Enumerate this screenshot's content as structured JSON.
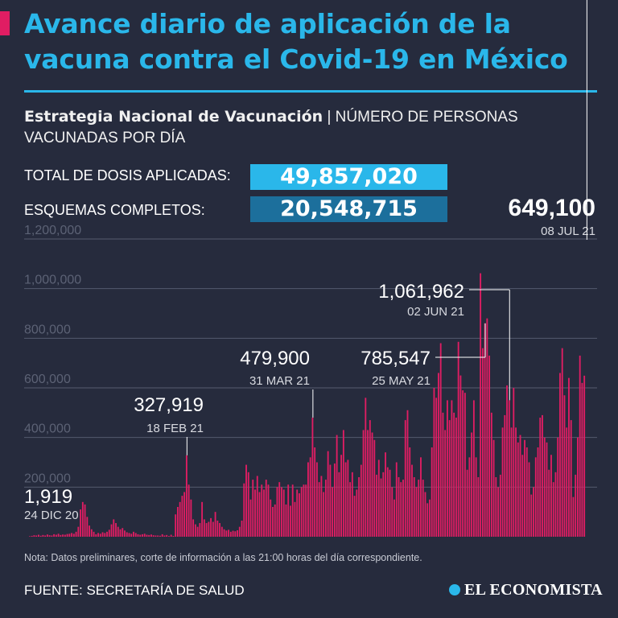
{
  "header": {
    "title": "Avance diario de aplicación de la vacuna contra el Covid-19 en México",
    "subtitle_bold": "Estrategia Nacional de Vacunación",
    "subtitle_rest": " | NÚMERO DE PERSONAS VACUNADAS POR DÍA"
  },
  "stats": {
    "total_label": "TOTAL DE DOSIS APLICADAS:",
    "total_value": "49,857,020",
    "complete_label": "ESQUEMAS COMPLETOS:",
    "complete_value": "20,548,715"
  },
  "footer": {
    "note": "Nota: Datos preliminares, corte de información a las 21:00 horas del día correspondiente.",
    "source": "FUENTE: SECRETARÍA DE SALUD",
    "brand": "EL ECONOMISTA"
  },
  "colors": {
    "bar": "#e01d63",
    "accent": "#2ab7ea",
    "background": "#262b3d",
    "grid": "#555b6e"
  },
  "chart_data": {
    "type": "bar",
    "x_start": "2020-12-24",
    "x_end": "2021-07-08",
    "ylim": [
      0,
      1200000
    ],
    "yticks": [
      {
        "value": 0,
        "label": ""
      },
      {
        "value": 200000,
        "label": "200,000"
      },
      {
        "value": 400000,
        "label": "400,000"
      },
      {
        "value": 600000,
        "label": "600,000"
      },
      {
        "value": 800000,
        "label": "800,000"
      },
      {
        "value": 1000000,
        "label": "1,000,000"
      },
      {
        "value": 1200000,
        "label": "1,200,000"
      }
    ],
    "values": [
      1919,
      3500,
      6000,
      5000,
      8000,
      4000,
      7000,
      5000,
      9000,
      6000,
      5000,
      10000,
      8000,
      12000,
      7000,
      9000,
      8000,
      11000,
      12000,
      15000,
      12000,
      20000,
      40000,
      110000,
      140000,
      130000,
      80000,
      45000,
      30000,
      20000,
      10000,
      15000,
      12000,
      18000,
      15000,
      20000,
      28000,
      50000,
      70000,
      55000,
      40000,
      30000,
      35000,
      25000,
      18000,
      15000,
      12000,
      20000,
      15000,
      10000,
      8000,
      10000,
      12000,
      8000,
      7000,
      9000,
      6000,
      5000,
      5000,
      4000,
      10000,
      5000,
      7000,
      3000,
      8000,
      3000,
      90000,
      120000,
      140000,
      165000,
      180000,
      327919,
      210000,
      150000,
      70000,
      50000,
      40000,
      55000,
      140000,
      70000,
      55000,
      60000,
      75000,
      60000,
      100000,
      65000,
      55000,
      40000,
      30000,
      25000,
      28000,
      20000,
      24000,
      22000,
      26000,
      40000,
      65000,
      215000,
      290000,
      260000,
      150000,
      230000,
      190000,
      245000,
      180000,
      210000,
      190000,
      230000,
      210000,
      150000,
      120000,
      130000,
      200000,
      220000,
      200000,
      190000,
      130000,
      210000,
      125000,
      210000,
      140000,
      190000,
      175000,
      200000,
      210000,
      210000,
      300000,
      320000,
      479900,
      360000,
      300000,
      220000,
      245000,
      180000,
      230000,
      345000,
      290000,
      200000,
      295000,
      410000,
      260000,
      330000,
      430000,
      300000,
      310000,
      220000,
      260000,
      165000,
      190000,
      240000,
      290000,
      430000,
      560000,
      430000,
      470000,
      420000,
      390000,
      250000,
      310000,
      235000,
      260000,
      340000,
      280000,
      270000,
      200000,
      150000,
      300000,
      240000,
      220000,
      230000,
      470000,
      510000,
      360000,
      290000,
      240000,
      200000,
      230000,
      320000,
      230000,
      180000,
      135000,
      150000,
      360000,
      600000,
      560000,
      660000,
      780000,
      500000,
      430000,
      550000,
      470000,
      550000,
      500000,
      480000,
      785547,
      650000,
      590000,
      580000,
      270000,
      320000,
      420000,
      550000,
      320000,
      240000,
      1061962,
      760000,
      860000,
      880000,
      730000,
      500000,
      390000,
      240000,
      200000,
      250000,
      440000,
      490000,
      610000,
      550000,
      440000,
      600000,
      440000,
      380000,
      410000,
      330000,
      390000,
      360000,
      300000,
      170000,
      200000,
      320000,
      360000,
      480000,
      490000,
      400000,
      380000,
      270000,
      330000,
      220000,
      260000,
      400000,
      660000,
      760000,
      570000,
      440000,
      640000,
      470000,
      160000,
      250000,
      400000,
      730000,
      620000,
      649100
    ],
    "annotations": [
      {
        "value_label": "1,919",
        "date_label": "24 DIC 20",
        "index": 0
      },
      {
        "value_label": "327,919",
        "date_label": "18 FEB 21",
        "index": 71
      },
      {
        "value_label": "479,900",
        "date_label": "31 MAR 21",
        "index": 128
      },
      {
        "value_label": "785,547",
        "date_label": "25 MAY 21",
        "index": 206
      },
      {
        "value_label": "1,061,962",
        "date_label": "02 JUN 21",
        "index": 217
      },
      {
        "value_label": "649,100",
        "date_label": "08 JUL 21",
        "index": 252
      }
    ]
  }
}
